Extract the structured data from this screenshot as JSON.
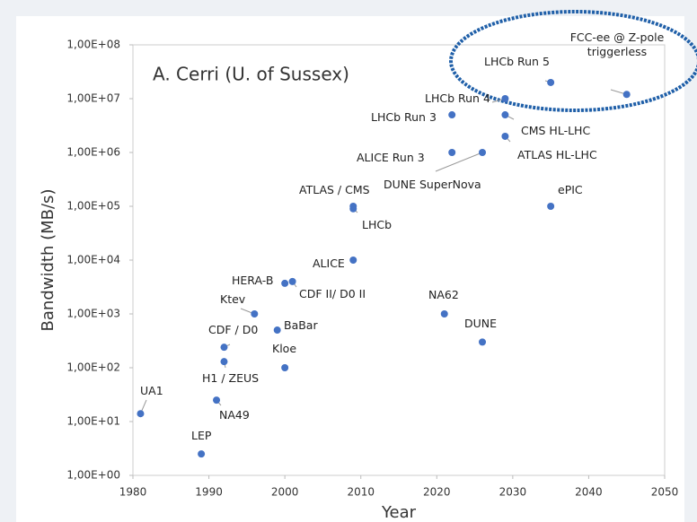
{
  "chart_data": {
    "type": "scatter",
    "annotation": "A. Cerri (U. of Sussex)",
    "xlabel": "Year",
    "ylabel": "Bandwidth (MB/s)",
    "color": "#4472c4",
    "log_y": true,
    "xlim": [
      1980,
      2050
    ],
    "xticks": [
      1980,
      1990,
      2000,
      2010,
      2020,
      2030,
      2040,
      2050
    ],
    "ylim": [
      1,
      100000000
    ],
    "yticks": [
      {
        "value": 1,
        "label": "1,00E+00"
      },
      {
        "value": 10,
        "label": "1,00E+01"
      },
      {
        "value": 100,
        "label": "1,00E+02"
      },
      {
        "value": 1000,
        "label": "1,00E+03"
      },
      {
        "value": 10000,
        "label": "1,00E+04"
      },
      {
        "value": 100000,
        "label": "1,00E+05"
      },
      {
        "value": 1000000,
        "label": "1,00E+06"
      },
      {
        "value": 10000000,
        "label": "1,00E+07"
      },
      {
        "value": 100000000,
        "label": "1,00E+08"
      }
    ],
    "labels": [
      "UA1",
      "LEP",
      "NA49",
      "CDF / D0",
      "H1 / ZEUS",
      "Ktev",
      "BaBar",
      "Kloe",
      "HERA-B",
      "CDF II/ D0 II",
      "ALICE",
      "ATLAS / CMS",
      "LHCb",
      "ALICE Run 3",
      "DUNE SuperNova",
      "LHCb Run 3",
      "LHCb Run 4",
      "CMS HL-LHC",
      "ATLAS HL-LHC",
      "LHCb Run 5",
      "FCC-ee @ Z-pole triggerless",
      "ePIC",
      "NA62",
      "DUNE"
    ],
    "x": [
      1981,
      1989,
      1991,
      1992,
      1992,
      1996,
      1999,
      2000,
      2000,
      2001,
      2009,
      2009,
      2009,
      2022,
      2026,
      2022,
      2029,
      2029,
      2029,
      2035,
      2045,
      2035,
      2021,
      2026
    ],
    "values": [
      14,
      2.5,
      25,
      240,
      130,
      1000,
      500,
      100,
      3700,
      4000,
      10000,
      100000,
      90000,
      1000000,
      1000000,
      5000000,
      10000000,
      5000000,
      2000000,
      20000000,
      12000000,
      100000,
      1000,
      300
    ]
  }
}
